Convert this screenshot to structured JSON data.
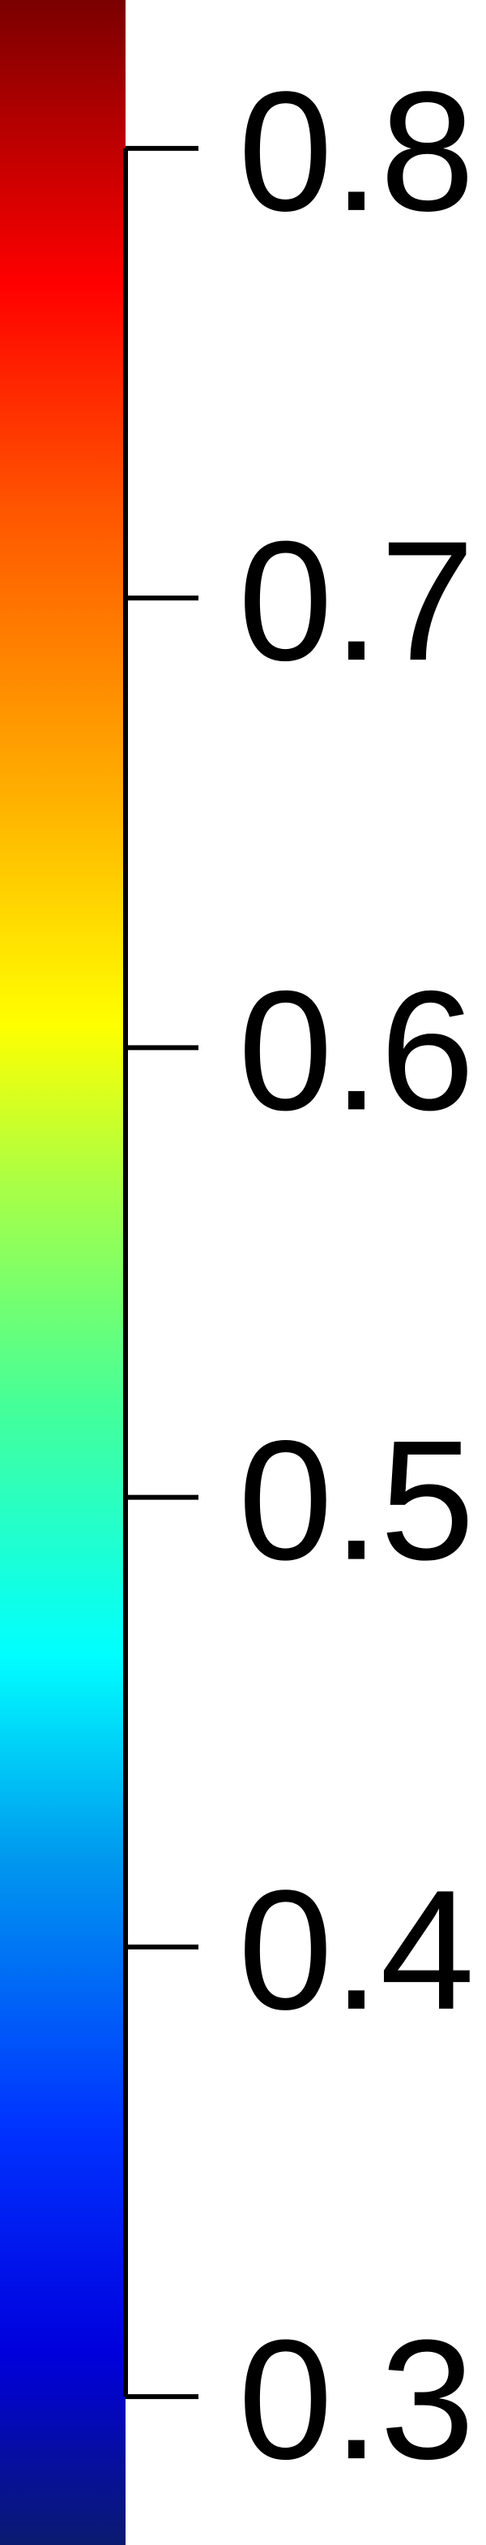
{
  "chart_data": {
    "type": "colorbar",
    "colormap": "jet",
    "orientation": "vertical",
    "range": [
      0.267,
      0.833
    ],
    "ticks": [
      0.8,
      0.7,
      0.6,
      0.5,
      0.4,
      0.3
    ],
    "tick_labels": [
      "0.8",
      "0.7",
      "0.6",
      "0.5",
      "0.4",
      "0.3"
    ],
    "title": "",
    "color_stops": [
      {
        "value": 0.267,
        "color": "#0a1a70"
      },
      {
        "value": 0.31,
        "color": "#0000dd"
      },
      {
        "value": 0.36,
        "color": "#0033ff"
      },
      {
        "value": 0.42,
        "color": "#0099ee"
      },
      {
        "value": 0.465,
        "color": "#00ffff"
      },
      {
        "value": 0.52,
        "color": "#44ff99"
      },
      {
        "value": 0.57,
        "color": "#aaff44"
      },
      {
        "value": 0.605,
        "color": "#ffff00"
      },
      {
        "value": 0.66,
        "color": "#ffaa00"
      },
      {
        "value": 0.72,
        "color": "#ff5500"
      },
      {
        "value": 0.77,
        "color": "#ff0000"
      },
      {
        "value": 0.833,
        "color": "#7a0000"
      }
    ]
  }
}
